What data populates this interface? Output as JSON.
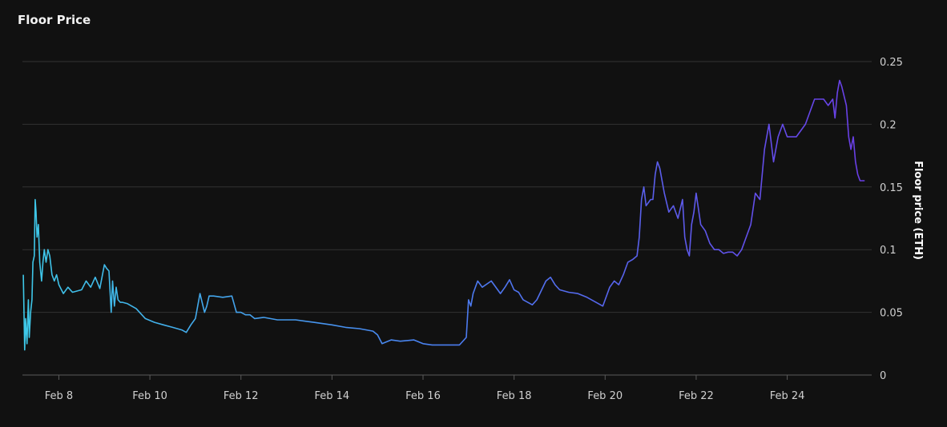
{
  "chart_data": {
    "type": "line",
    "title": "Floor Price",
    "ylabel": "Floor price (ETH)",
    "xlabel": "",
    "x_unit": "date (Feb, day of month)",
    "xlim": [
      7.2,
      25.75
    ],
    "ylim": [
      0,
      0.25
    ],
    "yticks": [
      0,
      0.05,
      0.1,
      0.15,
      0.2,
      0.25
    ],
    "ytick_labels": [
      "0",
      "0.05",
      "0.1",
      "0.15",
      "0.2",
      "0.25"
    ],
    "xticks": [
      8,
      10,
      12,
      14,
      16,
      18,
      20,
      22,
      24
    ],
    "xtick_labels": [
      "Feb 8",
      "Feb 10",
      "Feb 12",
      "Feb 14",
      "Feb 16",
      "Feb 18",
      "Feb 20",
      "Feb 22",
      "Feb 24"
    ],
    "grid": true,
    "gradient_colors": [
      "#3ec8e8",
      "#4a7ef0",
      "#6a3ee6"
    ],
    "series": [
      {
        "x": [
          7.22,
          7.25,
          7.27,
          7.3,
          7.33,
          7.35,
          7.38,
          7.41,
          7.43,
          7.46,
          7.48,
          7.5,
          7.52,
          7.55,
          7.58,
          7.62,
          7.65,
          7.68,
          7.72,
          7.76,
          7.8,
          7.85,
          7.9,
          7.95,
          8.0,
          8.1,
          8.2,
          8.3,
          8.5,
          8.6,
          8.7,
          8.8,
          8.9,
          9.0,
          9.05,
          9.1,
          9.15,
          9.18,
          9.22,
          9.26,
          9.3,
          9.35,
          9.4,
          9.5,
          9.7,
          9.9,
          10.1,
          10.3,
          10.5,
          10.7,
          10.8,
          10.9,
          11.0,
          11.1,
          11.2,
          11.25,
          11.3,
          11.4,
          11.6,
          11.8,
          11.9,
          12.0,
          12.1,
          12.2,
          12.3,
          12.5,
          12.8,
          13.2,
          13.6,
          14.0,
          14.3,
          14.6,
          14.9,
          15.0,
          15.1,
          15.3,
          15.5,
          15.8,
          16.0,
          16.2,
          16.5,
          16.8,
          16.95,
          17.0,
          17.05,
          17.1,
          17.2,
          17.3,
          17.5,
          17.7,
          17.8,
          17.9,
          18.0,
          18.1,
          18.2,
          18.4,
          18.5,
          18.7,
          18.8,
          18.9,
          19.0,
          19.2,
          19.4,
          19.6,
          19.8,
          19.95,
          20.0,
          20.1,
          20.2,
          20.3,
          20.4,
          20.5,
          20.6,
          20.7,
          20.75,
          20.8,
          20.85,
          20.9,
          21.0,
          21.05,
          21.1,
          21.15,
          21.2,
          21.3,
          21.4,
          21.5,
          21.6,
          21.7,
          21.75,
          21.8,
          21.85,
          21.9,
          21.95,
          22.0,
          22.1,
          22.2,
          22.3,
          22.4,
          22.5,
          22.6,
          22.7,
          22.8,
          22.9,
          23.0,
          23.1,
          23.2,
          23.3,
          23.4,
          23.5,
          23.6,
          23.7,
          23.8,
          23.9,
          24.0,
          24.1,
          24.2,
          24.4,
          24.6,
          24.7,
          24.8,
          24.9,
          25.0,
          25.05,
          25.1,
          25.15,
          25.2,
          25.3,
          25.35,
          25.4,
          25.45,
          25.5,
          25.55,
          25.6,
          25.65,
          25.7
        ],
        "y": [
          0.08,
          0.02,
          0.045,
          0.025,
          0.06,
          0.03,
          0.05,
          0.06,
          0.09,
          0.095,
          0.14,
          0.13,
          0.11,
          0.12,
          0.09,
          0.075,
          0.09,
          0.1,
          0.09,
          0.1,
          0.095,
          0.08,
          0.075,
          0.08,
          0.072,
          0.065,
          0.07,
          0.066,
          0.068,
          0.075,
          0.07,
          0.078,
          0.069,
          0.088,
          0.085,
          0.083,
          0.05,
          0.075,
          0.055,
          0.07,
          0.06,
          0.058,
          0.058,
          0.057,
          0.053,
          0.045,
          0.042,
          0.04,
          0.038,
          0.036,
          0.034,
          0.04,
          0.045,
          0.065,
          0.05,
          0.055,
          0.063,
          0.063,
          0.062,
          0.063,
          0.05,
          0.05,
          0.048,
          0.048,
          0.045,
          0.046,
          0.044,
          0.044,
          0.042,
          0.04,
          0.038,
          0.037,
          0.035,
          0.032,
          0.025,
          0.028,
          0.027,
          0.028,
          0.025,
          0.024,
          0.024,
          0.024,
          0.03,
          0.06,
          0.055,
          0.065,
          0.075,
          0.07,
          0.075,
          0.065,
          0.07,
          0.076,
          0.068,
          0.066,
          0.06,
          0.056,
          0.06,
          0.075,
          0.078,
          0.072,
          0.068,
          0.066,
          0.065,
          0.062,
          0.058,
          0.055,
          0.06,
          0.07,
          0.075,
          0.072,
          0.08,
          0.09,
          0.092,
          0.095,
          0.11,
          0.14,
          0.15,
          0.135,
          0.14,
          0.14,
          0.16,
          0.17,
          0.165,
          0.145,
          0.13,
          0.135,
          0.125,
          0.14,
          0.11,
          0.1,
          0.095,
          0.12,
          0.13,
          0.145,
          0.12,
          0.115,
          0.105,
          0.1,
          0.1,
          0.097,
          0.098,
          0.098,
          0.095,
          0.1,
          0.11,
          0.12,
          0.145,
          0.14,
          0.18,
          0.2,
          0.17,
          0.19,
          0.2,
          0.19,
          0.19,
          0.19,
          0.2,
          0.22,
          0.22,
          0.22,
          0.215,
          0.22,
          0.205,
          0.225,
          0.235,
          0.23,
          0.215,
          0.19,
          0.18,
          0.19,
          0.17,
          0.16,
          0.155,
          0.155,
          0.155
        ]
      }
    ]
  }
}
